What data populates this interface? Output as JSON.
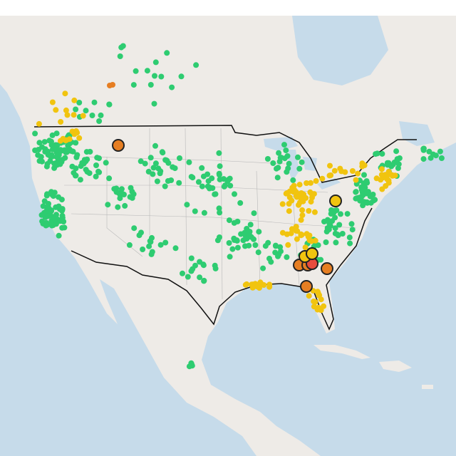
{
  "markers": {
    "colors": [
      "#2ecc71",
      "#f1c40f",
      "#e67e22",
      "#e74c3c"
    ]
  }
}
